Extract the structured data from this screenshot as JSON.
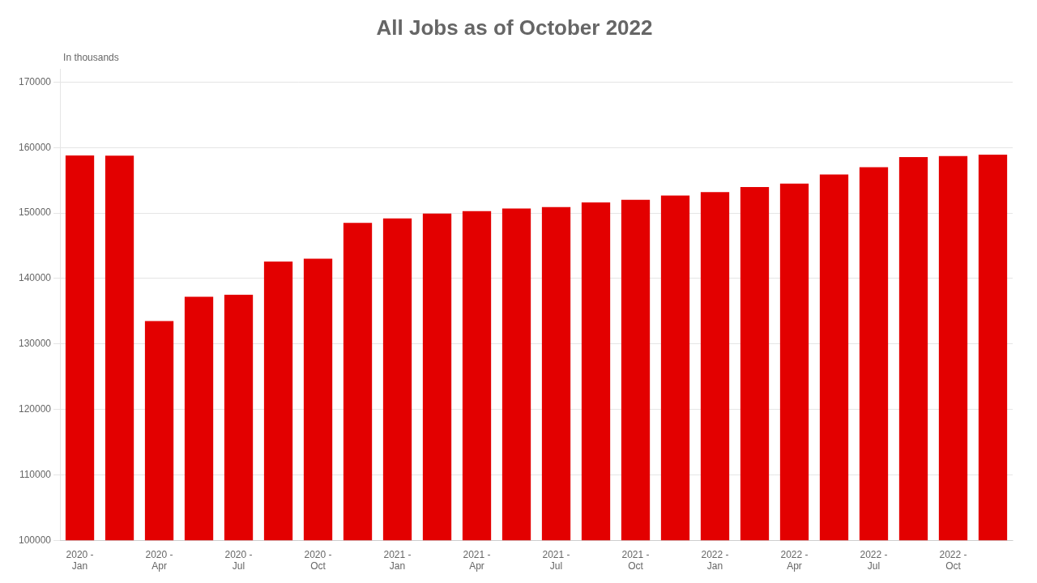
{
  "chart_data": {
    "type": "bar",
    "title": "All Jobs as of October 2022",
    "annotations": [
      "In thousands"
    ],
    "categories": [
      "2020 -\nJan",
      null,
      "2020 -\nApr",
      null,
      "2020 -\nJul",
      null,
      "2020 -\nOct",
      null,
      "2021 -\nJan",
      null,
      "2021 -\nApr",
      null,
      "2021 -\nJul",
      null,
      "2021 -\nOct",
      null,
      "2022 -\nJan",
      null,
      "2022 -\nApr",
      null,
      "2022 -\nJul",
      null,
      "2022 -\nOct",
      null
    ],
    "values": [
      158800,
      158759,
      133483,
      137197,
      137500,
      142567,
      143000,
      148500,
      149161,
      149900,
      150272,
      150700,
      150897,
      151613,
      152000,
      152677,
      153200,
      153956,
      154500,
      155895,
      157000,
      158554,
      158700,
      158900
    ],
    "color": "#e30000",
    "ylim": [
      100000,
      172000
    ],
    "yticks": [
      100000,
      110000,
      120000,
      130000,
      140000,
      150000,
      160000,
      170000
    ],
    "grid": true
  }
}
